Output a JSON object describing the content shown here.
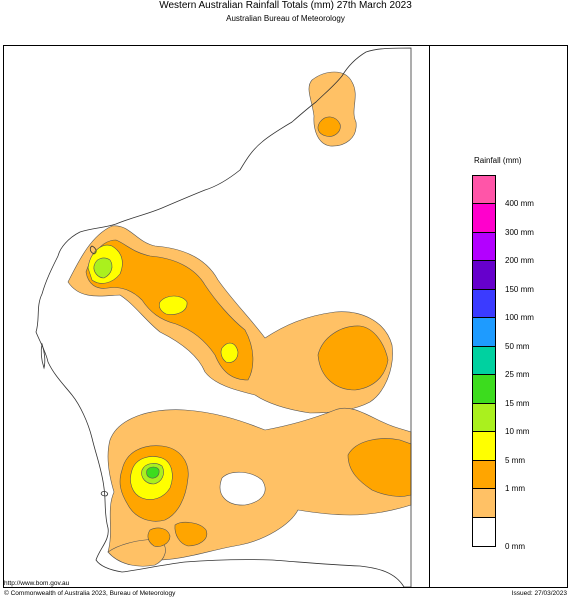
{
  "header": {
    "title": "Western Australian Rainfall Totals (mm) 27th March 2023",
    "subtitle": "Australian Bureau of Meteorology"
  },
  "legend": {
    "title": "Rainfall (mm)",
    "bins": [
      {
        "label": "400 mm",
        "color": "#ff00cc"
      },
      {
        "label": "300 mm",
        "color": "#b300ff"
      },
      {
        "label": "200 mm",
        "color": "#6600cc"
      },
      {
        "label": "150 mm",
        "color": "#3b3bff"
      },
      {
        "label": "100 mm",
        "color": "#1e9bff"
      },
      {
        "label": "50 mm",
        "color": "#00d1a0"
      },
      {
        "label": "25 mm",
        "color": "#3cdc1e"
      },
      {
        "label": "15 mm",
        "color": "#aaf01e"
      },
      {
        "label": "10 mm",
        "color": "#ffff00"
      },
      {
        "label": "5 mm",
        "color": "#ffa500"
      },
      {
        "label": "1 mm",
        "color": "#ffc165"
      },
      {
        "label": "0 mm",
        "color": "#ffffff"
      }
    ],
    "top_color": "#ff55a8"
  },
  "map_colors": {
    "r1": "#ffc165",
    "r5": "#ffa500",
    "r10": "#ffff00",
    "r15": "#aaf01e",
    "r25": "#3cdc1e",
    "outline": "#555555",
    "coast": "#333333"
  },
  "footer": {
    "url": "http://www.bom.gov.au",
    "copyright": "© Commonwealth of Australia 2023, Bureau of Meteorology",
    "issued": "Issued: 27/03/2023"
  }
}
